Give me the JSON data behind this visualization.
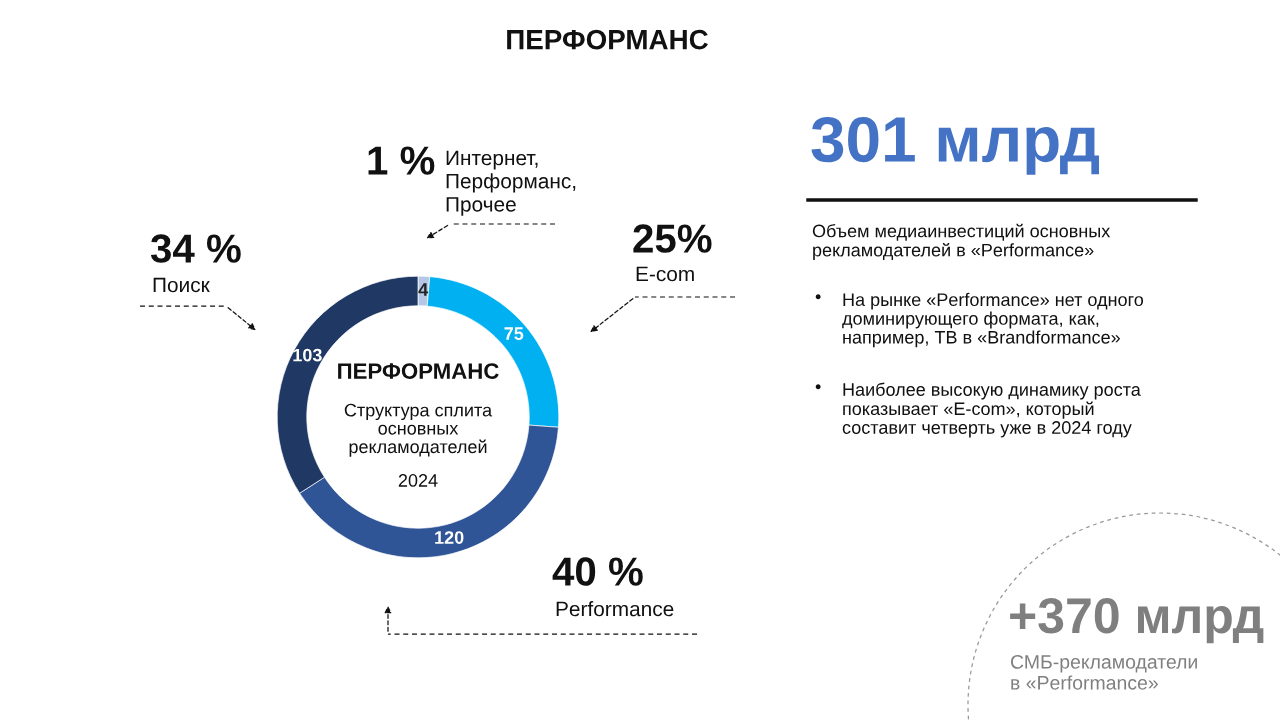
{
  "chart_data": {
    "type": "donut",
    "title": "ПЕРФОРМАНС",
    "categories": [
      "Интернет,\nПерформанс,\nПрочее",
      "E-com",
      "Performance",
      "Поиск"
    ],
    "values": [
      4,
      75,
      120,
      103
    ],
    "colors": [
      "#b4c7e7",
      "#00b0f0",
      "#2f5597",
      "#203864"
    ],
    "data_labels": true,
    "legend": false,
    "annotations": [
      "ПЕРФОРМАНС",
      "Структура сплита\nосновных\nрекламодателей",
      "2024",
      "1 %",
      "25%",
      "40 %",
      "34 %",
      "301 млрд",
      "Объем медиаинвестиций основных\nрекламодателей в «Performance»",
      "•",
      "На рынке «Performance» нет одного\nдоминирующего формата, как,\nнапример, ТВ в «Brandformance»",
      "•",
      "Наиболее высокую динамику роста\nпоказывает «E-com», который\nсоставит четверть уже в 2024 году",
      "+370 млрд",
      "СМБ-рекламодатели\nв «Performance»"
    ]
  }
}
